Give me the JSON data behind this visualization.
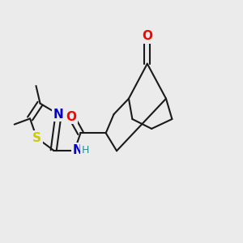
{
  "background_color": "#ebebeb",
  "bond_color": "#1a1a1a",
  "bond_width": 1.5,
  "figsize": [
    3.0,
    3.0
  ],
  "dpi": 100,
  "atom_colors": {
    "O": "#ff0000",
    "N": "#0000cc",
    "S": "#cccc00",
    "H": "#2e8b8b",
    "C": "#1a1a1a"
  }
}
